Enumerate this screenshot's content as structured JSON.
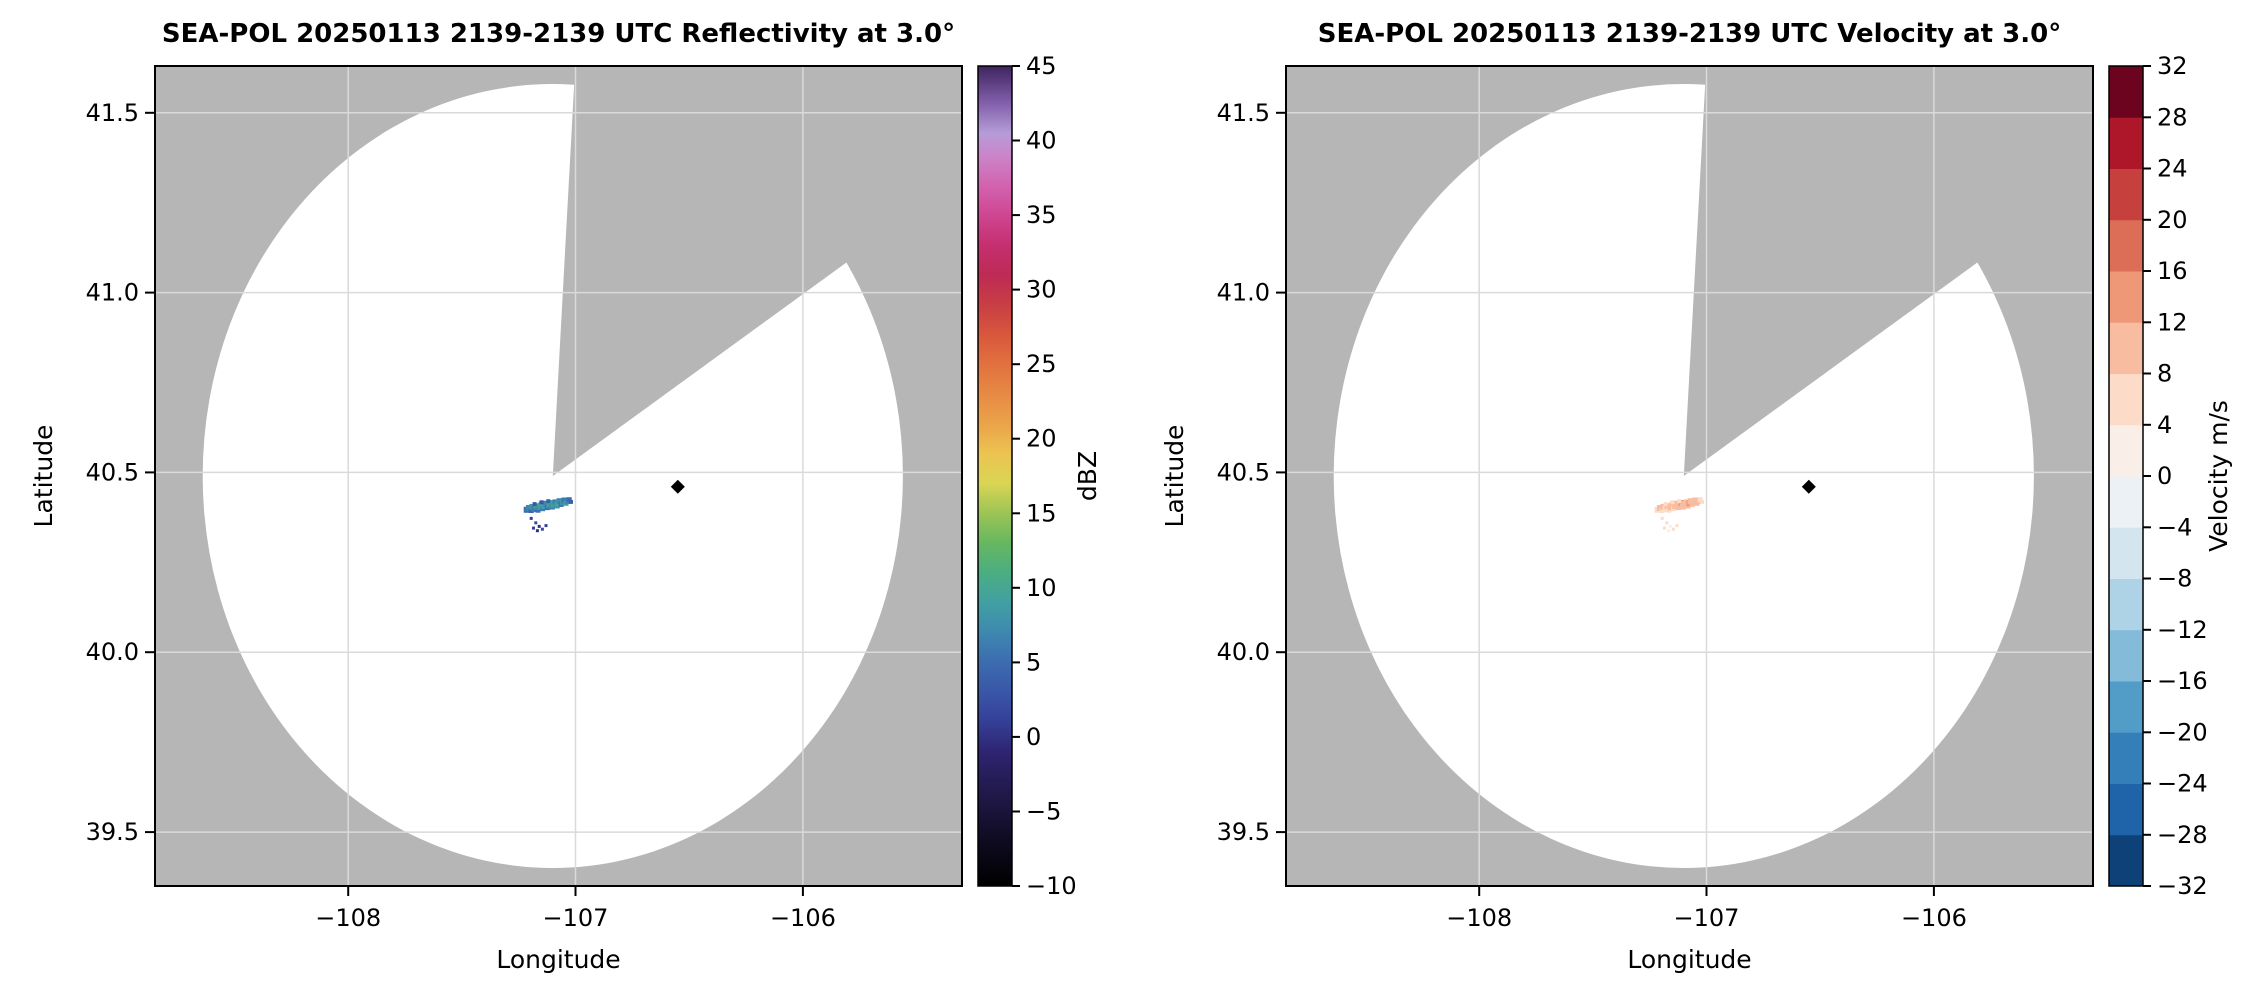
{
  "figure": {
    "background": "#ffffff",
    "outside_color": "#b6b6b6",
    "coverage_color": "#ffffff",
    "grid_color": "#dadada",
    "spine_color": "#000000",
    "tick_color": "#000000"
  },
  "chart_data": {
    "type": "scatter",
    "shared": {
      "xlabel": "Longitude",
      "ylabel": "Latitude",
      "xlim": [
        -108.85,
        -105.3
      ],
      "ylim": [
        39.35,
        41.63
      ],
      "xticks": [
        {
          "v": -108,
          "label": "−108"
        },
        {
          "v": -107,
          "label": "−107"
        },
        {
          "v": -106,
          "label": "−106"
        }
      ],
      "yticks": [
        {
          "v": 39.5,
          "label": "39.5"
        },
        {
          "v": 40.0,
          "label": "40.0"
        },
        {
          "v": 40.5,
          "label": "40.5"
        },
        {
          "v": 41.0,
          "label": "41.0"
        },
        {
          "v": 41.5,
          "label": "41.5"
        }
      ],
      "radar": {
        "center_lon": -107.1,
        "center_lat": 40.49,
        "radius_lon_deg": 1.54,
        "radius_lat_deg": 1.09,
        "blocked_sector_az_deg": [
          3.5,
          57
        ]
      },
      "marker": {
        "lon": -106.55,
        "lat": 40.46,
        "shape": "diamond",
        "color": "#000000"
      }
    },
    "point_columns": [
      "lon",
      "lat",
      "reflectivity_dBZ",
      "velocity_ms",
      "size_px"
    ],
    "points": [
      [
        -107.215,
        40.396,
        5,
        7,
        6
      ],
      [
        -107.205,
        40.401,
        7,
        8,
        6
      ],
      [
        -107.195,
        40.394,
        4,
        6,
        5
      ],
      [
        -107.19,
        40.404,
        8,
        9,
        6
      ],
      [
        -107.18,
        40.398,
        6,
        7,
        6
      ],
      [
        -107.172,
        40.406,
        9,
        8,
        6
      ],
      [
        -107.165,
        40.395,
        5,
        6,
        5
      ],
      [
        -107.158,
        40.403,
        8,
        10,
        6
      ],
      [
        -107.15,
        40.41,
        10,
        9,
        6
      ],
      [
        -107.145,
        40.399,
        6,
        7,
        5
      ],
      [
        -107.138,
        40.407,
        9,
        11,
        6
      ],
      [
        -107.13,
        40.413,
        7,
        9,
        6
      ],
      [
        -107.124,
        40.402,
        5,
        8,
        5
      ],
      [
        -107.117,
        40.409,
        8,
        10,
        6
      ],
      [
        -107.11,
        40.415,
        10,
        12,
        6
      ],
      [
        -107.104,
        40.405,
        7,
        9,
        6
      ],
      [
        -107.097,
        40.412,
        9,
        11,
        6
      ],
      [
        -107.09,
        40.418,
        6,
        8,
        5
      ],
      [
        -107.083,
        40.408,
        8,
        10,
        6
      ],
      [
        -107.076,
        40.414,
        10,
        12,
        6
      ],
      [
        -107.07,
        40.42,
        7,
        9,
        6
      ],
      [
        -107.063,
        40.411,
        5,
        8,
        5
      ],
      [
        -107.056,
        40.417,
        8,
        10,
        6
      ],
      [
        -107.049,
        40.422,
        6,
        9,
        6
      ],
      [
        -107.042,
        40.414,
        9,
        11,
        5
      ],
      [
        -107.035,
        40.419,
        7,
        8,
        5
      ],
      [
        -107.028,
        40.424,
        5,
        7,
        5
      ],
      [
        -107.02,
        40.418,
        4,
        6,
        4
      ],
      [
        -107.15,
        40.417,
        3,
        5,
        4
      ],
      [
        -107.12,
        40.42,
        4,
        6,
        4
      ],
      [
        -107.18,
        40.412,
        3,
        5,
        4
      ],
      [
        -107.195,
        40.372,
        1,
        4,
        3
      ],
      [
        -107.175,
        40.36,
        2,
        5,
        3
      ],
      [
        -107.16,
        40.35,
        0,
        3,
        3
      ],
      [
        -107.146,
        40.342,
        2,
        4,
        3
      ],
      [
        -107.13,
        40.352,
        1,
        5,
        3
      ],
      [
        -107.168,
        40.338,
        0,
        3,
        3
      ],
      [
        -107.185,
        40.345,
        1,
        4,
        3
      ]
    ],
    "panels": [
      {
        "id": "refl",
        "title": "SEA-POL 20250113 2139-2139 UTC Reflectivity at 3.0°",
        "value_index": 2,
        "colorbar": {
          "kind": "continuous",
          "label": "dBZ",
          "min": -10,
          "max": 45,
          "ticks": [
            {
              "v": -10,
              "label": "−10"
            },
            {
              "v": -5,
              "label": "−5"
            },
            {
              "v": 0,
              "label": "0"
            },
            {
              "v": 5,
              "label": "5"
            },
            {
              "v": 10,
              "label": "10"
            },
            {
              "v": 15,
              "label": "15"
            },
            {
              "v": 20,
              "label": "20"
            },
            {
              "v": 25,
              "label": "25"
            },
            {
              "v": 30,
              "label": "30"
            },
            {
              "v": 35,
              "label": "35"
            },
            {
              "v": 40,
              "label": "40"
            },
            {
              "v": 45,
              "label": "45"
            }
          ]
        },
        "cmap_stops": [
          [
            -10,
            "#000000"
          ],
          [
            -7,
            "#0e0b20"
          ],
          [
            -4,
            "#201847"
          ],
          [
            -1,
            "#2e2472"
          ],
          [
            1,
            "#353f97"
          ],
          [
            3,
            "#3a56a7"
          ],
          [
            5,
            "#3c6cb0"
          ],
          [
            7,
            "#3e88b0"
          ],
          [
            9,
            "#41a0a2"
          ],
          [
            11,
            "#4aae82"
          ],
          [
            13,
            "#66b75f"
          ],
          [
            15,
            "#9cc455"
          ],
          [
            17,
            "#d9d554"
          ],
          [
            19,
            "#ecc351"
          ],
          [
            21,
            "#eba34a"
          ],
          [
            23,
            "#e78a44"
          ],
          [
            25,
            "#e1713f"
          ],
          [
            27,
            "#d8573c"
          ],
          [
            29,
            "#c93d44"
          ],
          [
            31,
            "#bd2b55"
          ],
          [
            33,
            "#c52f70"
          ],
          [
            35,
            "#cf4691"
          ],
          [
            37,
            "#d263b0"
          ],
          [
            39,
            "#cb85c9"
          ],
          [
            40.5,
            "#b59cd8"
          ],
          [
            42.5,
            "#8260ab"
          ],
          [
            45,
            "#3f2460"
          ]
        ]
      },
      {
        "id": "vel",
        "title": "SEA-POL 20250113 2139-2139 UTC Velocity at 3.0°",
        "value_index": 3,
        "colorbar": {
          "kind": "discrete",
          "label": "Velocity m/s",
          "min": -32,
          "max": 32,
          "ticks": [
            {
              "v": -32,
              "label": "−32"
            },
            {
              "v": -28,
              "label": "−28"
            },
            {
              "v": -24,
              "label": "−24"
            },
            {
              "v": -20,
              "label": "−20"
            },
            {
              "v": -16,
              "label": "−16"
            },
            {
              "v": -12,
              "label": "−12"
            },
            {
              "v": -8,
              "label": "−8"
            },
            {
              "v": -4,
              "label": "−4"
            },
            {
              "v": 0,
              "label": "0"
            },
            {
              "v": 4,
              "label": "4"
            },
            {
              "v": 8,
              "label": "8"
            },
            {
              "v": 12,
              "label": "12"
            },
            {
              "v": 16,
              "label": "16"
            },
            {
              "v": 20,
              "label": "20"
            },
            {
              "v": 24,
              "label": "24"
            },
            {
              "v": 28,
              "label": "28"
            },
            {
              "v": 32,
              "label": "32"
            }
          ]
        },
        "bin_colors": [
          "#0e4178",
          "#1f63a8",
          "#347fb9",
          "#529cc8",
          "#83bbd9",
          "#aed3e6",
          "#d3e6f0",
          "#ebf1f5",
          "#f9eee8",
          "#fcdcc9",
          "#f8bda0",
          "#ee9878",
          "#dc6d57",
          "#c6403e",
          "#ae162a",
          "#6c0420"
        ]
      }
    ]
  }
}
